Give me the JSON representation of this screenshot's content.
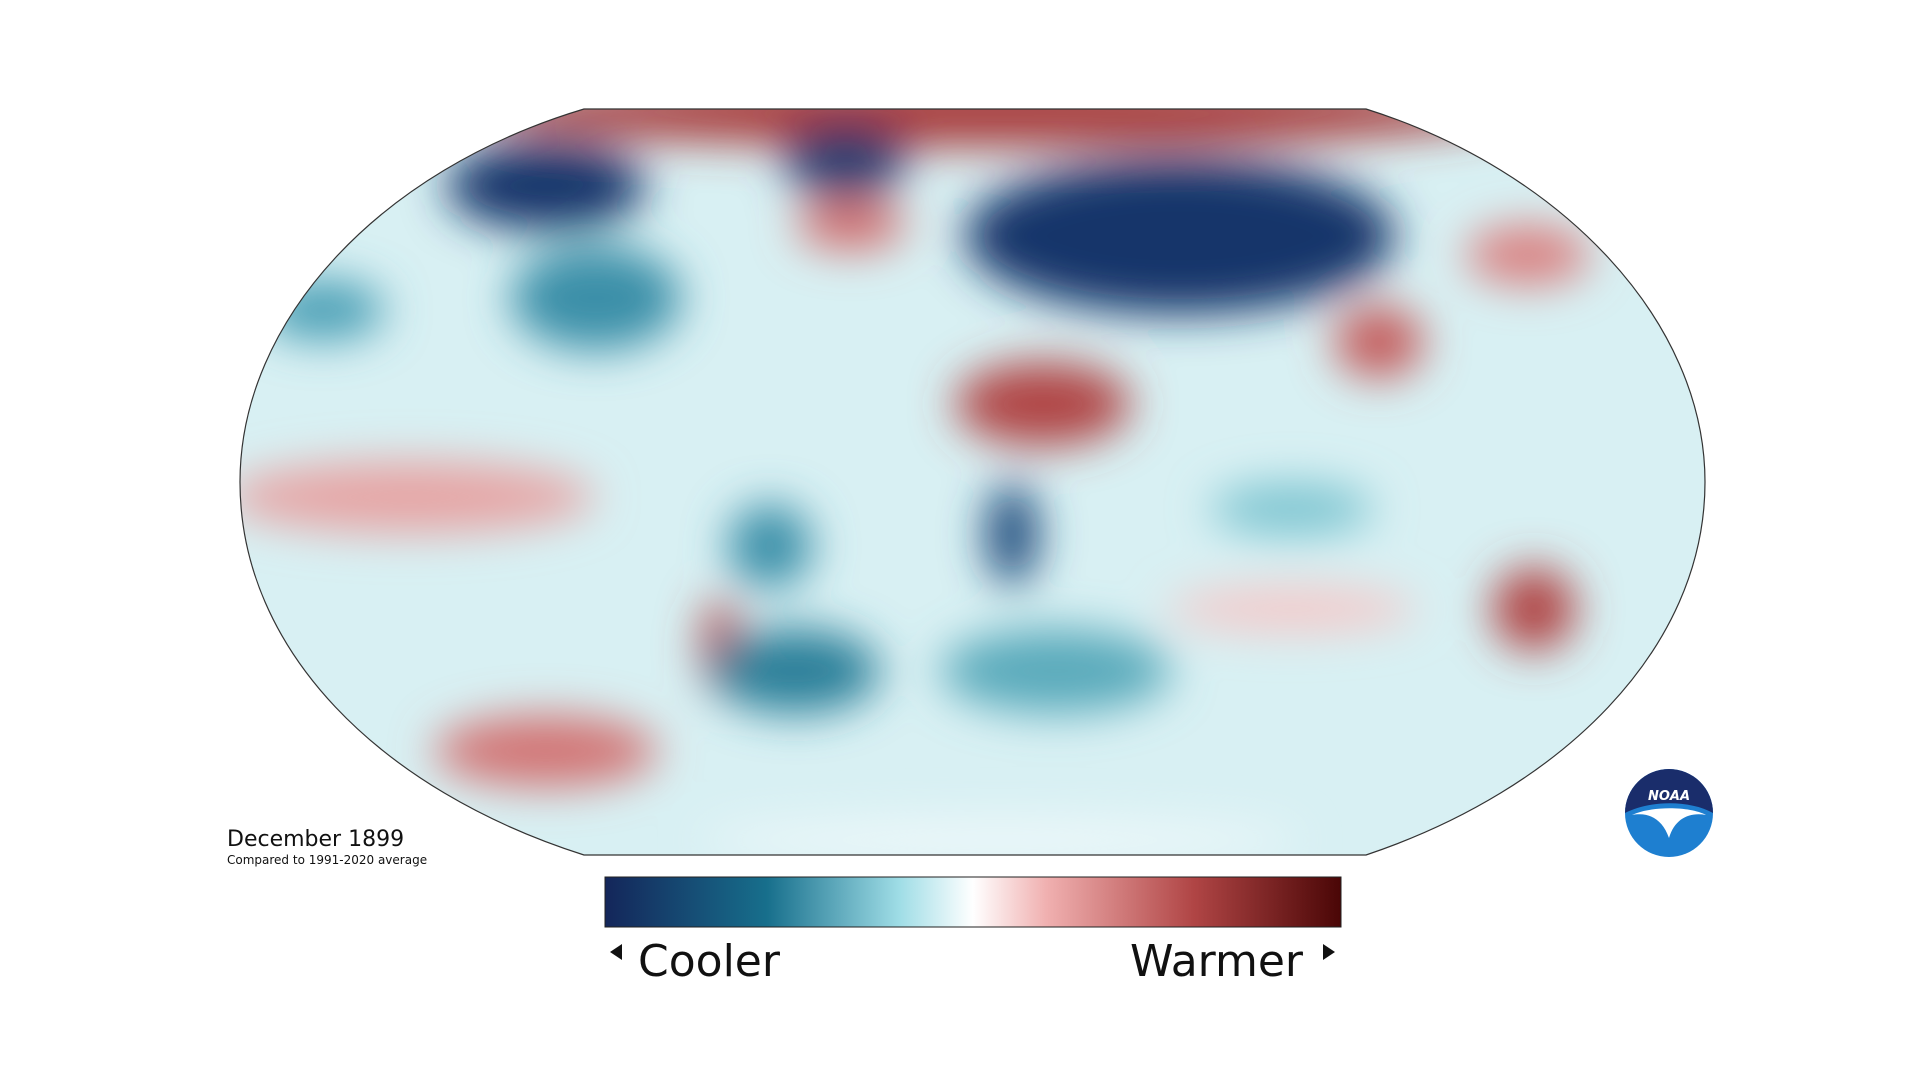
{
  "map": {
    "title": "December 1899",
    "subtitle": "Compared to 1991-2020 average",
    "legend": {
      "low_label": "Cooler",
      "high_label": "Warmer"
    },
    "logo": "NOAA"
  }
}
